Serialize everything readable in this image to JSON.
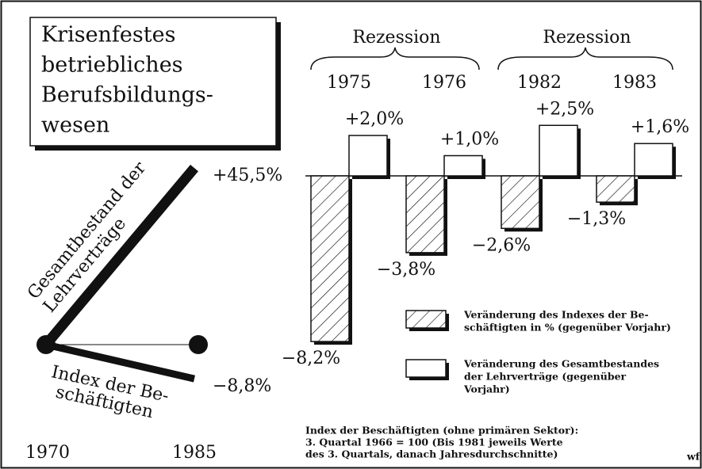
{
  "chart_data": [
    {
      "type": "line",
      "title": [
        "Krisenfestes",
        "betriebliches",
        "Berufsbildungs-",
        "wesen"
      ],
      "x": [
        "1970",
        "1985"
      ],
      "series": [
        {
          "name": [
            "Gesamtbestand der",
            "Lehrverträge"
          ],
          "color": "#111111",
          "values": [
            0,
            45.5
          ],
          "value_labels": [
            null,
            "+45,5%"
          ]
        },
        {
          "name": [
            "Index der Be-",
            "schäftigten"
          ],
          "color": "#111111",
          "values": [
            0,
            -8.8
          ],
          "value_labels": [
            null,
            "−8,8%"
          ]
        }
      ]
    },
    {
      "type": "bar",
      "groups": [
        {
          "label": "Rezession",
          "categories": [
            0,
            1
          ]
        },
        {
          "label": "Rezession",
          "categories": [
            2,
            3
          ]
        }
      ],
      "categories": [
        "1975",
        "1976",
        "1982",
        "1983"
      ],
      "series": [
        {
          "name": [
            "Veränderung des Indexes der Be-",
            "schäftigten in % (gegenüber Vorjahr)"
          ],
          "pattern": "hatch",
          "values": [
            -8.2,
            -3.8,
            -2.6,
            -1.3
          ],
          "value_labels": [
            "−8,2%",
            "−3,8%",
            "−2,6%",
            "−1,3%"
          ]
        },
        {
          "name": [
            "Veränderung des Gesamtbestandes",
            "der Lehrverträge (gegenüber",
            "Vorjahr)"
          ],
          "pattern": "blank",
          "values": [
            2.0,
            1.0,
            2.5,
            1.6
          ],
          "value_labels": [
            "+2,0%",
            "+1,0%",
            "+2,5%",
            "+1,6%"
          ]
        }
      ],
      "note": [
        "Index der Beschäftigten (ohne primären Sektor):",
        "3. Quartal 1966 = 100 (Bis 1981 jeweils Werte",
        "des 3. Quartals, danach Jahresdurchschnitte)"
      ],
      "source": "wf"
    }
  ]
}
